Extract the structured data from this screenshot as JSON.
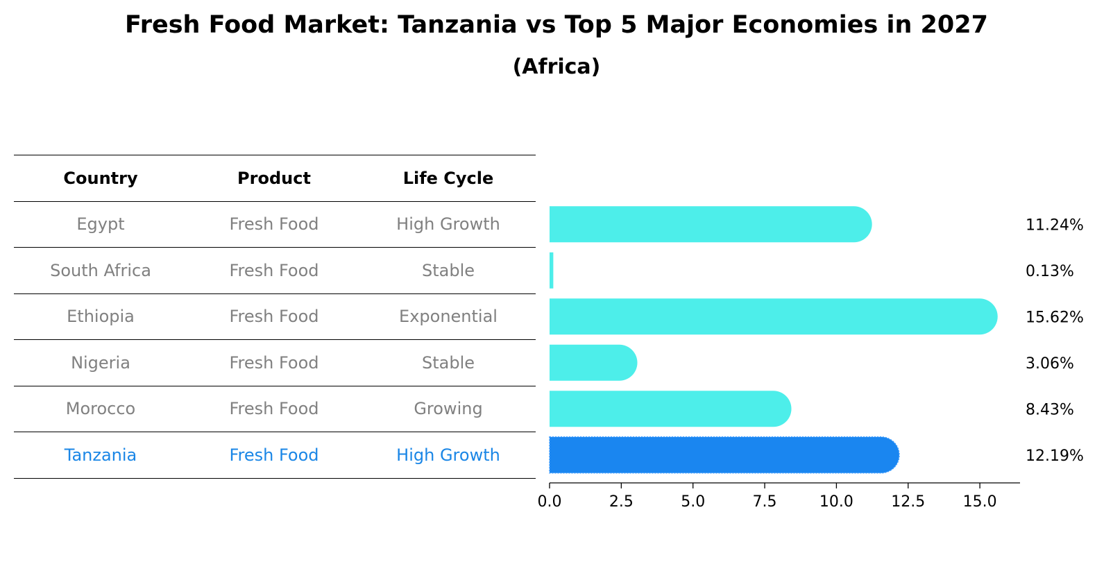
{
  "title": "Fresh Food Market: Tanzania vs Top 5 Major Economies in 2027",
  "subtitle": "(Africa)",
  "table": {
    "headers": [
      "Country",
      "Product",
      "Life Cycle"
    ],
    "rows": [
      {
        "country": "Egypt",
        "product": "Fresh Food",
        "life_cycle": "High Growth"
      },
      {
        "country": "South Africa",
        "product": "Fresh Food",
        "life_cycle": "Stable"
      },
      {
        "country": "Ethiopia",
        "product": "Fresh Food",
        "life_cycle": "Exponential"
      },
      {
        "country": "Nigeria",
        "product": "Fresh Food",
        "life_cycle": "Stable"
      },
      {
        "country": "Morocco",
        "product": "Fresh Food",
        "life_cycle": "Growing"
      },
      {
        "country": "Tanzania",
        "product": "Fresh Food",
        "life_cycle": "High Growth"
      }
    ]
  },
  "colors": {
    "bar": "#4deeea",
    "highlight": "#1a86f0",
    "highlight_text": "#1a86e6",
    "muted_text": "#808080"
  },
  "chart_data": {
    "type": "bar",
    "orientation": "horizontal",
    "categories": [
      "Egypt",
      "South Africa",
      "Ethiopia",
      "Nigeria",
      "Morocco",
      "Tanzania"
    ],
    "values": [
      11.24,
      0.13,
      15.62,
      3.06,
      8.43,
      12.19
    ],
    "value_labels": [
      "11.24%",
      "0.13%",
      "15.62%",
      "3.06%",
      "8.43%",
      "12.19%"
    ],
    "highlight_category": "Tanzania",
    "xlim": [
      0,
      16.4
    ],
    "xticks": [
      0.0,
      2.5,
      5.0,
      7.5,
      10.0,
      12.5,
      15.0
    ],
    "xtick_labels": [
      "0.0",
      "2.5",
      "5.0",
      "7.5",
      "10.0",
      "12.5",
      "15.0"
    ],
    "xlabel": "",
    "ylabel": "",
    "grid": false
  }
}
